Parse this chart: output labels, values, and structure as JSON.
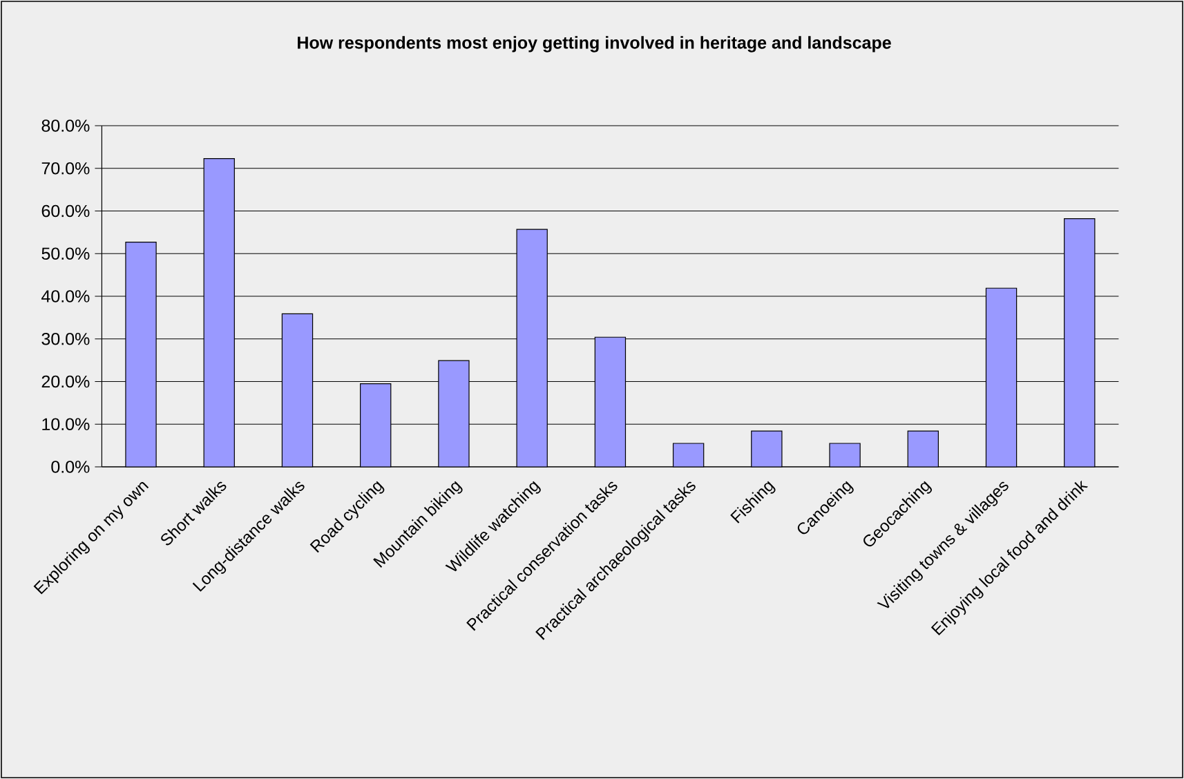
{
  "chart_data": {
    "type": "bar",
    "title": "How respondents most enjoy getting involved in heritage and landscape",
    "categories": [
      "Exploring on my own",
      "Short walks",
      "Long-distance walks",
      "Road cycling",
      "Mountain biking",
      "Wildlife watching",
      "Practical conservation tasks",
      "Practical archaeological tasks",
      "Fishing",
      "Canoeing",
      "Geocaching",
      "Visiting towns & villages",
      "Enjoying local food and drink"
    ],
    "values": [
      52.7,
      72.3,
      35.9,
      19.5,
      24.9,
      55.7,
      30.4,
      5.5,
      8.4,
      5.5,
      8.4,
      41.9,
      58.2
    ],
    "color": "#9999ff",
    "ylim": [
      0,
      80
    ],
    "yticks": [
      {
        "value": 0,
        "label": "0.0%"
      },
      {
        "value": 10,
        "label": "10.0%"
      },
      {
        "value": 20,
        "label": "20.0%"
      },
      {
        "value": 30,
        "label": "30.0%"
      },
      {
        "value": 40,
        "label": "40.0%"
      },
      {
        "value": 50,
        "label": "50.0%"
      },
      {
        "value": 60,
        "label": "60.0%"
      },
      {
        "value": 70,
        "label": "70.0%"
      },
      {
        "value": 80,
        "label": "80.0%"
      }
    ],
    "grid": "y"
  }
}
